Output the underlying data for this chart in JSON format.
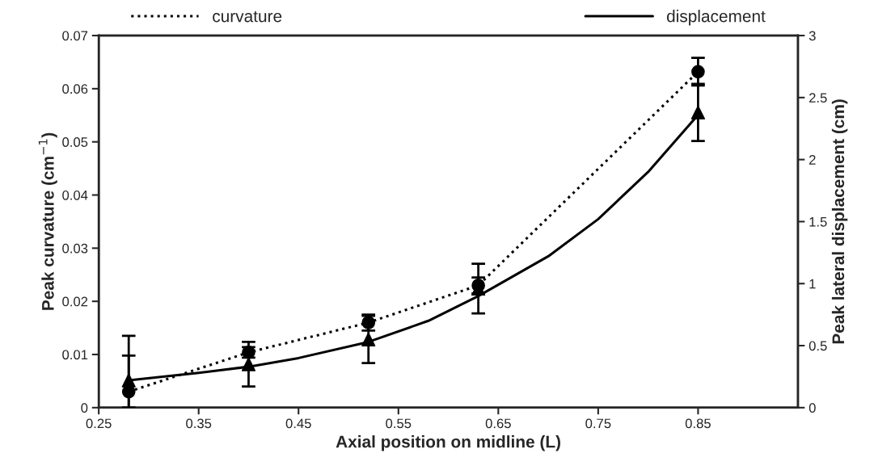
{
  "chart_data": {
    "type": "line",
    "xlabel": "Axial position on midline (L)",
    "ylabel": "Peak curvature (cm$^{−1}$)",
    "y2label": "Peak lateral displacement (cm)",
    "xlim": [
      0.25,
      0.95
    ],
    "xticks": [
      0.25,
      0.35,
      0.45,
      0.55,
      0.65,
      0.75,
      0.85
    ],
    "ylim": [
      0,
      0.07
    ],
    "yticks": [
      0,
      0.01,
      0.02,
      0.03,
      0.04,
      0.05,
      0.06,
      0.07
    ],
    "y2lim": [
      0,
      3
    ],
    "y2ticks": [
      0,
      0.5,
      1,
      1.5,
      2,
      2.5,
      3
    ],
    "grid": false,
    "legend": "top",
    "series": [
      {
        "name": "curvature",
        "color": "#000000",
        "marker": "circle",
        "line_style": "dotted",
        "x": [
          0.28,
          0.4,
          0.52,
          0.63,
          0.85
        ],
        "values": [
          0.003,
          0.0104,
          0.016,
          0.023,
          0.0632
        ],
        "errors": [
          [
            0.0,
            0.0135
          ],
          0.001,
          0.0015,
          0.0015,
          0.0026
        ]
      },
      {
        "type": "scatter",
        "axis": "y2",
        "color": "#000000",
        "marker": "triangle",
        "x": [
          0.28,
          0.4,
          0.52,
          0.63,
          0.85
        ],
        "values": [
          0.22,
          0.35,
          0.55,
          0.96,
          2.38
        ],
        "errors": [
          [
            0.0,
            0.42
          ],
          0.18,
          0.19,
          0.2,
          0.23
        ]
      },
      {
        "name": "displacement",
        "type": "line",
        "axis": "y2",
        "color": "#000000",
        "marker": "none",
        "line_style": "solid",
        "x": [
          0.28,
          0.35,
          0.4,
          0.45,
          0.52,
          0.58,
          0.63,
          0.7,
          0.75,
          0.8,
          0.85
        ],
        "values": [
          0.22,
          0.28,
          0.33,
          0.4,
          0.53,
          0.7,
          0.9,
          1.22,
          1.52,
          1.9,
          2.36
        ]
      }
    ]
  }
}
